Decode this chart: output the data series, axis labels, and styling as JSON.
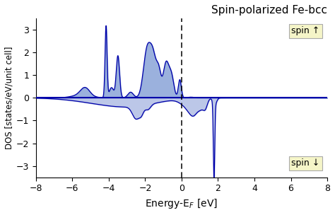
{
  "title": "Spin-polarized Fe-bcc",
  "xlabel": "Energy-E$_F$ [eV]",
  "ylabel": "DOS [states/eV/unit cell]",
  "xlim": [
    -8,
    8
  ],
  "ylim": [
    -3.5,
    3.5
  ],
  "xticks": [
    -8,
    -6,
    -4,
    -2,
    0,
    2,
    4,
    6,
    8
  ],
  "yticks": [
    -3,
    -2,
    -1,
    0,
    1,
    2,
    3
  ],
  "fill_color_up": "#6688cc",
  "fill_color_down": "#99aadd",
  "line_color": "#0000aa",
  "bg_color": "#ffffff",
  "spin_up_label": "spin ↑",
  "spin_down_label": "spin ↓",
  "legend_box_color": "#f5f5c8",
  "legend_box_edge": "#aaaaaa"
}
